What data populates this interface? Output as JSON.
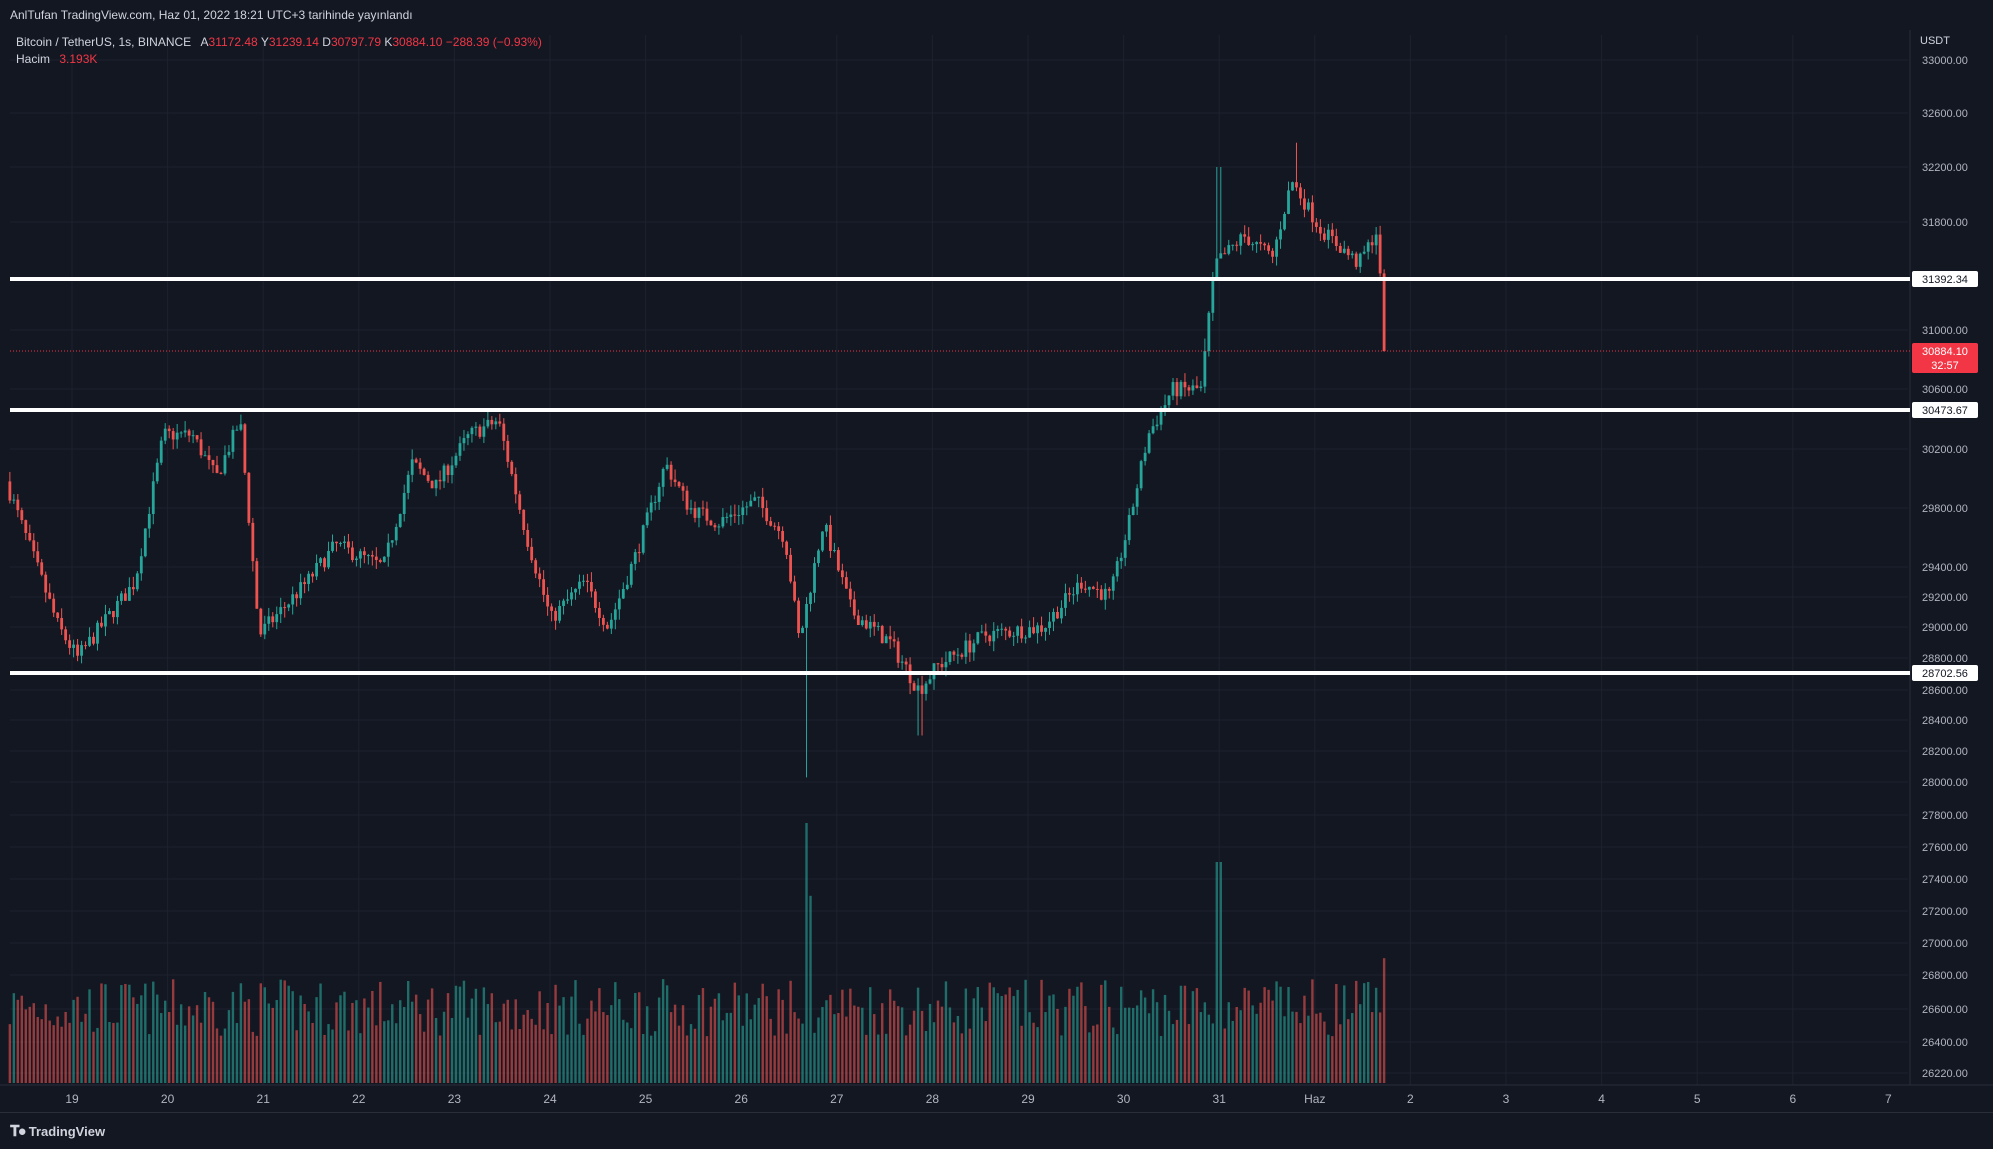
{
  "header": {
    "publisher": "AnlTufan TradingView.com, Haz 01, 2022 18:21 UTC+3 tarihinde yayınlandı"
  },
  "legend": {
    "symbol": "Bitcoin / TetherUS, 1s, BINANCE",
    "open_label": "A",
    "open": "31172.48",
    "high_label": "Y",
    "high": "31239.14",
    "low_label": "D",
    "low": "30797.79",
    "close_label": "K",
    "close": "30884.10",
    "change": "−288.39 (−0.93%)",
    "volume_label": "Hacim",
    "volume": "3.193K"
  },
  "axis": {
    "currency": "USDT",
    "price_ticks": [
      "33000.00",
      "32600.00",
      "32200.00",
      "31800.00",
      "31000.00",
      "30600.00",
      "30200.00",
      "29800.00",
      "29400.00",
      "29200.00",
      "29000.00",
      "28800.00",
      "28600.00",
      "28400.00",
      "28200.00",
      "28000.00",
      "27800.00",
      "27600.00",
      "27400.00",
      "27200.00",
      "27000.00",
      "26800.00",
      "26600.00",
      "26400.00",
      "26220.00"
    ],
    "time_ticks": [
      "19",
      "20",
      "21",
      "22",
      "23",
      "24",
      "25",
      "26",
      "27",
      "28",
      "29",
      "30",
      "31",
      "Haz",
      "2",
      "3",
      "4",
      "5",
      "6",
      "7"
    ]
  },
  "levels": [
    {
      "price": 31392.34,
      "label": "31392.34"
    },
    {
      "price": 30473.67,
      "label": "30473.67"
    },
    {
      "price": 28702.56,
      "label": "28702.56"
    }
  ],
  "last_price": {
    "label": "30884.10",
    "countdown": "32:57"
  },
  "colors": {
    "up": "#26a69a",
    "down": "#ef5350",
    "background": "#131722",
    "grid": "#1e222d",
    "level": "#ffffff",
    "last": "#f23645"
  },
  "footer": {
    "brand": "TradingView",
    "logo_icon": "tradingview-logo-icon"
  },
  "chart_data": {
    "type": "candlestick",
    "interval": "1h",
    "exchange": "BINANCE",
    "pair": "BTC/USDT",
    "approximate": true,
    "waypoints": [
      {
        "day": 18.35,
        "price": 29980
      },
      {
        "day": 18.9,
        "price": 29000
      },
      {
        "day": 19.1,
        "price": 28800
      },
      {
        "day": 19.7,
        "price": 29300
      },
      {
        "day": 20.0,
        "price": 30300
      },
      {
        "day": 20.3,
        "price": 30300
      },
      {
        "day": 20.55,
        "price": 30000
      },
      {
        "day": 20.8,
        "price": 30400
      },
      {
        "day": 21.0,
        "price": 28950
      },
      {
        "day": 21.5,
        "price": 29300
      },
      {
        "day": 21.8,
        "price": 29550
      },
      {
        "day": 22.3,
        "price": 29400
      },
      {
        "day": 22.6,
        "price": 30100
      },
      {
        "day": 22.85,
        "price": 29950
      },
      {
        "day": 23.2,
        "price": 30300
      },
      {
        "day": 23.5,
        "price": 30400
      },
      {
        "day": 23.8,
        "price": 29600
      },
      {
        "day": 24.05,
        "price": 29050
      },
      {
        "day": 24.4,
        "price": 29300
      },
      {
        "day": 24.65,
        "price": 29000
      },
      {
        "day": 24.95,
        "price": 29500
      },
      {
        "day": 25.25,
        "price": 30100
      },
      {
        "day": 25.5,
        "price": 29800
      },
      {
        "day": 25.8,
        "price": 29700
      },
      {
        "day": 26.2,
        "price": 29850
      },
      {
        "day": 26.5,
        "price": 29600
      },
      {
        "day": 26.65,
        "price": 28900
      },
      {
        "day": 26.9,
        "price": 29700
      },
      {
        "day": 27.2,
        "price": 29100
      },
      {
        "day": 27.6,
        "price": 28900
      },
      {
        "day": 27.9,
        "price": 28600
      },
      {
        "day": 28.1,
        "price": 28750
      },
      {
        "day": 28.6,
        "price": 28950
      },
      {
        "day": 29.2,
        "price": 29000
      },
      {
        "day": 29.6,
        "price": 29300
      },
      {
        "day": 29.9,
        "price": 29200
      },
      {
        "day": 30.1,
        "price": 29700
      },
      {
        "day": 30.3,
        "price": 30300
      },
      {
        "day": 30.55,
        "price": 30600
      },
      {
        "day": 30.85,
        "price": 30600
      },
      {
        "day": 31.0,
        "price": 31500
      },
      {
        "day": 31.3,
        "price": 31700
      },
      {
        "day": 31.6,
        "price": 31550
      },
      {
        "day": 31.8,
        "price": 32100
      },
      {
        "day": 32.1,
        "price": 31750
      },
      {
        "day": 32.5,
        "price": 31500
      },
      {
        "day": 32.7,
        "price": 31750
      },
      {
        "day": 32.76,
        "price": 30884
      }
    ],
    "extremes": [
      {
        "day": 31.0,
        "high": 32200
      },
      {
        "day": 31.8,
        "high": 32380
      },
      {
        "day": 26.67,
        "low": 28030
      },
      {
        "day": 27.87,
        "low": 28300
      }
    ],
    "volume_spikes": [
      {
        "day": 26.67,
        "relative": 1.0
      },
      {
        "day": 26.73,
        "relative": 0.72
      },
      {
        "day": 31.0,
        "relative": 0.85
      },
      {
        "day": 32.72,
        "relative": 0.48
      }
    ],
    "xlim_days": [
      18.3,
      37.4
    ],
    "ylim": [
      26220,
      33000
    ]
  }
}
